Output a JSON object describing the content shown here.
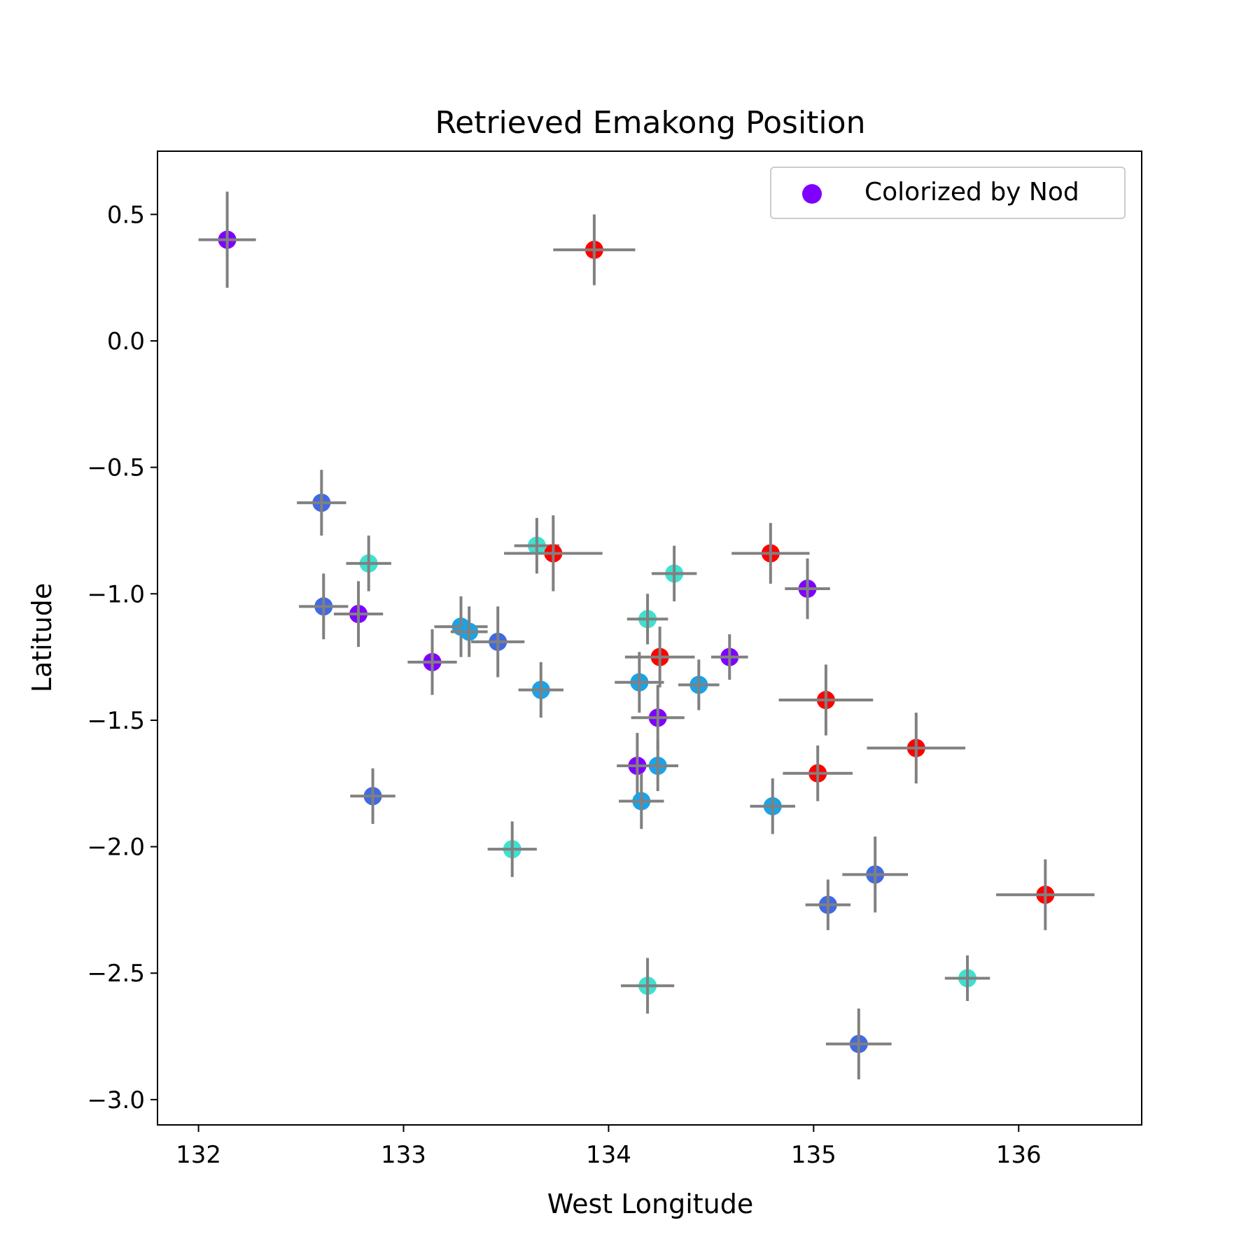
{
  "chart_data": {
    "type": "scatter",
    "title": "Retrieved Emakong Position",
    "xlabel": "West Longitude",
    "ylabel": "Latitude",
    "xlim": [
      131.8,
      136.6
    ],
    "ylim": [
      -3.1,
      0.75
    ],
    "xticks": [
      132,
      133,
      134,
      135,
      136
    ],
    "yticks": [
      0.5,
      0.0,
      -0.5,
      -1.0,
      -1.5,
      -2.0,
      -2.5,
      -3.0
    ],
    "ytick_labels": [
      "0.5",
      "0.0",
      "−0.5",
      "−1.0",
      "−1.5",
      "−2.0",
      "−2.5",
      "−3.0"
    ],
    "grid": false,
    "legend": {
      "entry": "Colorized by Nod",
      "marker_color": "#8000ff",
      "placement": "top-right"
    },
    "errorbar_color": "#808080",
    "colors": {
      "purple": "#8000ff",
      "blue": "#4169e1",
      "sky": "#1aa3e6",
      "cyan": "#40e0d0",
      "red": "#ff0000"
    },
    "points": [
      {
        "x": 132.14,
        "y": 0.4,
        "xerr": 0.14,
        "yerr": 0.19,
        "color": "purple"
      },
      {
        "x": 132.78,
        "y": -1.08,
        "xerr": 0.12,
        "yerr": 0.13,
        "color": "purple"
      },
      {
        "x": 133.14,
        "y": -1.27,
        "xerr": 0.12,
        "yerr": 0.13,
        "color": "purple"
      },
      {
        "x": 134.14,
        "y": -1.68,
        "xerr": 0.1,
        "yerr": 0.13,
        "color": "purple"
      },
      {
        "x": 134.24,
        "y": -1.49,
        "xerr": 0.13,
        "yerr": 0.13,
        "color": "purple"
      },
      {
        "x": 134.59,
        "y": -1.25,
        "xerr": 0.09,
        "yerr": 0.09,
        "color": "purple"
      },
      {
        "x": 134.97,
        "y": -0.98,
        "xerr": 0.11,
        "yerr": 0.12,
        "color": "purple"
      },
      {
        "x": 132.6,
        "y": -0.64,
        "xerr": 0.12,
        "yerr": 0.13,
        "color": "blue"
      },
      {
        "x": 132.61,
        "y": -1.05,
        "xerr": 0.12,
        "yerr": 0.13,
        "color": "blue"
      },
      {
        "x": 132.85,
        "y": -1.8,
        "xerr": 0.11,
        "yerr": 0.11,
        "color": "blue"
      },
      {
        "x": 133.46,
        "y": -1.19,
        "xerr": 0.13,
        "yerr": 0.14,
        "color": "blue"
      },
      {
        "x": 135.07,
        "y": -2.23,
        "xerr": 0.11,
        "yerr": 0.1,
        "color": "blue"
      },
      {
        "x": 135.3,
        "y": -2.11,
        "xerr": 0.16,
        "yerr": 0.15,
        "color": "blue"
      },
      {
        "x": 135.22,
        "y": -2.78,
        "xerr": 0.16,
        "yerr": 0.14,
        "color": "blue"
      },
      {
        "x": 133.28,
        "y": -1.13,
        "xerr": 0.13,
        "yerr": 0.12,
        "color": "sky"
      },
      {
        "x": 133.32,
        "y": -1.15,
        "xerr": 0.09,
        "yerr": 0.1,
        "color": "sky"
      },
      {
        "x": 133.67,
        "y": -1.38,
        "xerr": 0.11,
        "yerr": 0.11,
        "color": "sky"
      },
      {
        "x": 134.15,
        "y": -1.35,
        "xerr": 0.12,
        "yerr": 0.12,
        "color": "sky"
      },
      {
        "x": 134.44,
        "y": -1.36,
        "xerr": 0.1,
        "yerr": 0.1,
        "color": "sky"
      },
      {
        "x": 134.24,
        "y": -1.68,
        "xerr": 0.1,
        "yerr": 0.1,
        "color": "sky"
      },
      {
        "x": 134.16,
        "y": -1.82,
        "xerr": 0.11,
        "yerr": 0.11,
        "color": "sky"
      },
      {
        "x": 134.8,
        "y": -1.84,
        "xerr": 0.11,
        "yerr": 0.11,
        "color": "sky"
      },
      {
        "x": 132.83,
        "y": -0.88,
        "xerr": 0.11,
        "yerr": 0.11,
        "color": "cyan"
      },
      {
        "x": 133.65,
        "y": -0.81,
        "xerr": 0.11,
        "yerr": 0.11,
        "color": "cyan"
      },
      {
        "x": 134.19,
        "y": -1.1,
        "xerr": 0.1,
        "yerr": 0.1,
        "color": "cyan"
      },
      {
        "x": 134.32,
        "y": -0.92,
        "xerr": 0.11,
        "yerr": 0.11,
        "color": "cyan"
      },
      {
        "x": 133.53,
        "y": -2.01,
        "xerr": 0.12,
        "yerr": 0.11,
        "color": "cyan"
      },
      {
        "x": 134.19,
        "y": -2.55,
        "xerr": 0.13,
        "yerr": 0.11,
        "color": "cyan"
      },
      {
        "x": 135.75,
        "y": -2.52,
        "xerr": 0.11,
        "yerr": 0.09,
        "color": "cyan"
      },
      {
        "x": 133.93,
        "y": 0.36,
        "xerr": 0.2,
        "yerr": 0.14,
        "color": "red"
      },
      {
        "x": 133.73,
        "y": -0.84,
        "xerr": 0.24,
        "yerr": 0.15,
        "color": "red"
      },
      {
        "x": 134.79,
        "y": -0.84,
        "xerr": 0.19,
        "yerr": 0.12,
        "color": "red"
      },
      {
        "x": 134.25,
        "y": -1.25,
        "xerr": 0.17,
        "yerr": 0.12,
        "color": "red"
      },
      {
        "x": 135.06,
        "y": -1.42,
        "xerr": 0.23,
        "yerr": 0.14,
        "color": "red"
      },
      {
        "x": 135.5,
        "y": -1.61,
        "xerr": 0.24,
        "yerr": 0.14,
        "color": "red"
      },
      {
        "x": 135.02,
        "y": -1.71,
        "xerr": 0.17,
        "yerr": 0.11,
        "color": "red"
      },
      {
        "x": 136.13,
        "y": -2.19,
        "xerr": 0.24,
        "yerr": 0.14,
        "color": "red"
      }
    ]
  }
}
